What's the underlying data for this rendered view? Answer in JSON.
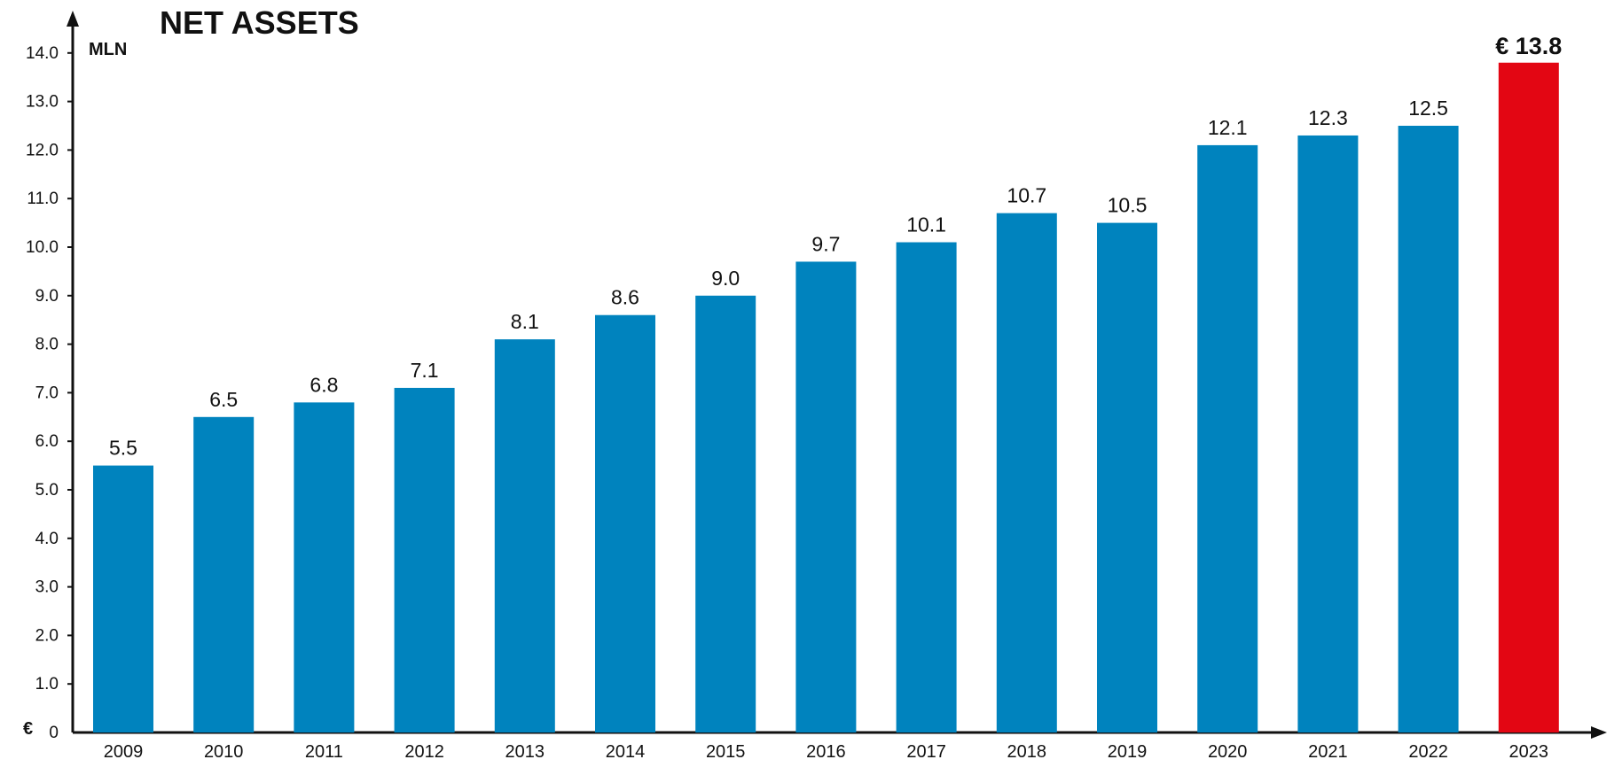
{
  "chart_data": {
    "type": "bar",
    "title": "NET ASSETS",
    "ylabel": "MLN",
    "currency_symbol": "€",
    "ylim": [
      0,
      14
    ],
    "yticks": [
      0,
      1,
      2,
      3,
      4,
      5,
      6,
      7,
      8,
      9,
      10,
      11,
      12,
      13,
      14
    ],
    "ytick_labels": [
      "0",
      "1.0",
      "2.0",
      "3.0",
      "4.0",
      "5.0",
      "6.0",
      "7.0",
      "8.0",
      "9.0",
      "10.0",
      "11.0",
      "12.0",
      "13.0",
      "14.0"
    ],
    "categories": [
      "2009",
      "2010",
      "2011",
      "2012",
      "2013",
      "2014",
      "2015",
      "2016",
      "2017",
      "2018",
      "2019",
      "2020",
      "2021",
      "2022",
      "2023"
    ],
    "values": [
      5.5,
      6.5,
      6.8,
      7.1,
      8.1,
      8.6,
      9.0,
      9.7,
      10.1,
      10.7,
      10.5,
      12.1,
      12.3,
      12.5,
      13.8
    ],
    "data_labels": [
      "5.5",
      "6.5",
      "6.8",
      "7.1",
      "8.1",
      "8.6",
      "9.0",
      "9.7",
      "10.1",
      "10.7",
      "10.5",
      "12.1",
      "12.3",
      "12.5",
      "€ 13.8"
    ],
    "highlight_index": 14,
    "grid": false,
    "colors": {
      "bar": "#0083BE",
      "highlight": "#E30613",
      "axis": "#111111",
      "text": "#111111"
    }
  }
}
